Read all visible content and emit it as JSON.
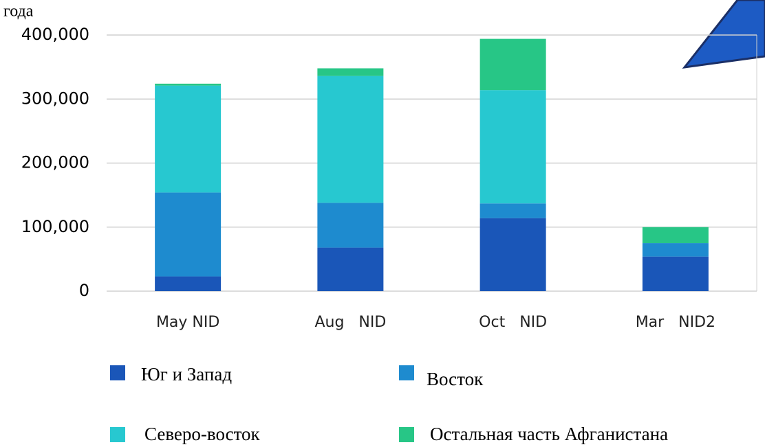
{
  "chart_data": {
    "type": "stacked_bar",
    "title": "года",
    "categories": [
      "May NID",
      "Aug   NID",
      "Oct   NID",
      "Mar   NID2"
    ],
    "series": [
      {
        "name": "Юг и Запад",
        "color": "#1a56b8",
        "values": [
          23000,
          68000,
          114000,
          54000
        ]
      },
      {
        "name": "Восток",
        "color": "#1e8bcf",
        "values": [
          131000,
          70000,
          23000,
          21000
        ]
      },
      {
        "name": "Северо-восток",
        "color": "#27c8d0",
        "values": [
          167000,
          198000,
          177000,
          0
        ]
      },
      {
        "name": "Остальная часть Афганистана",
        "color": "#27c686",
        "values": [
          3000,
          12000,
          80000,
          25000
        ]
      }
    ],
    "ylim": [
      0,
      400000
    ],
    "yticks": [
      0,
      {
        "value": 100000,
        "label": "100,000"
      },
      {
        "value": 200000,
        "label": "200,000"
      },
      {
        "value": 300000,
        "label": "300,000"
      },
      {
        "value": 400000,
        "label": "400,000"
      }
    ],
    "grid": true
  }
}
